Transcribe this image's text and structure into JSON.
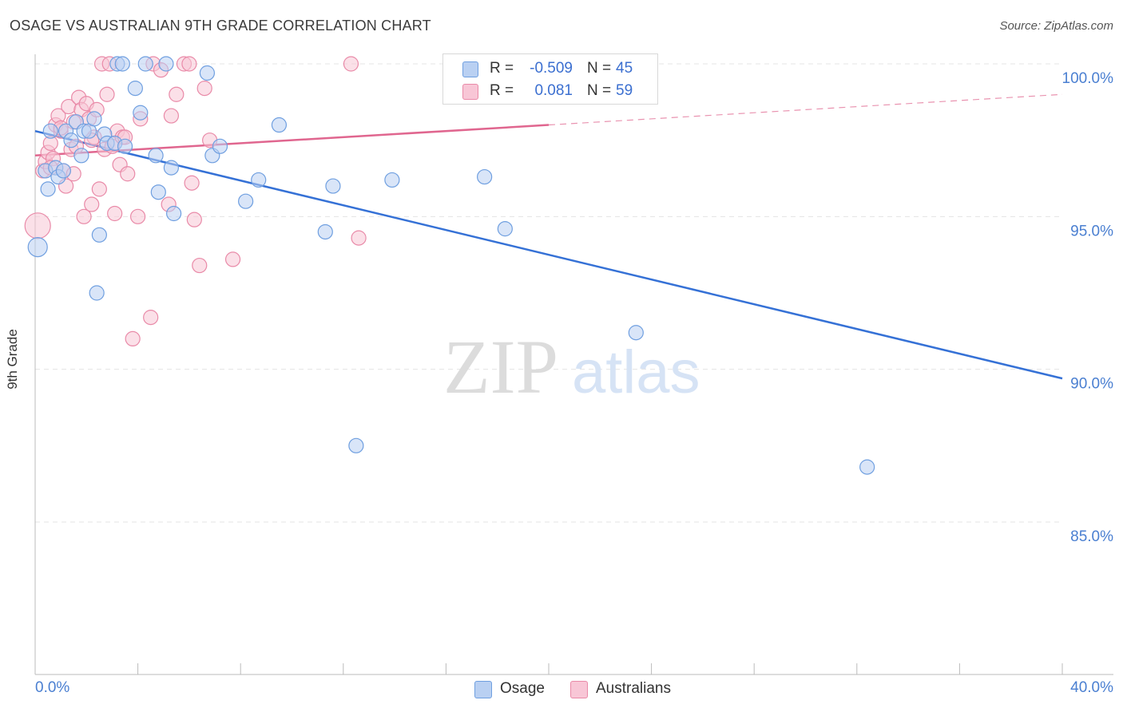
{
  "title": "OSAGE VS AUSTRALIAN 9TH GRADE CORRELATION CHART",
  "source": "Source: ZipAtlas.com",
  "watermark": {
    "zip": "ZIP",
    "atlas": "atlas"
  },
  "stats": {
    "r_label": "R =",
    "n_label": "N =",
    "rows": [
      {
        "r": "-0.509",
        "n": "45",
        "color": "#6f9fe0"
      },
      {
        "r": "0.081",
        "n": "59",
        "color": "#e98aa8"
      }
    ]
  },
  "legend": [
    "Osage",
    "Australians"
  ],
  "chart_data": {
    "type": "scatter",
    "title": "OSAGE VS AUSTRALIAN 9TH GRADE CORRELATION CHART",
    "xlabel": "",
    "ylabel": "9th Grade",
    "xlim": [
      0.0,
      40.0
    ],
    "ylim": [
      80.0,
      100.5
    ],
    "x_tick_labels": [
      "0.0%",
      "40.0%"
    ],
    "y_ticks": [
      85.0,
      90.0,
      95.0,
      100.0
    ],
    "y_tick_labels": [
      "85.0%",
      "90.0%",
      "95.0%",
      "100.0%"
    ],
    "grid": true,
    "legend_position": "bottom-center",
    "series": [
      {
        "name": "Osage",
        "color": "#6f9fe0",
        "fill": "#b9d0f2",
        "trend": {
          "x": [
            0.0,
            40.0
          ],
          "y": [
            97.8,
            89.7
          ],
          "style": "solid",
          "color": "#3571d6"
        },
        "points": [
          [
            0.1,
            94.0,
            12
          ],
          [
            0.4,
            96.5,
            9
          ],
          [
            0.5,
            95.9,
            9
          ],
          [
            0.6,
            97.8,
            9
          ],
          [
            0.8,
            96.6,
            9
          ],
          [
            0.9,
            96.3,
            9
          ],
          [
            1.1,
            96.5,
            9
          ],
          [
            1.2,
            97.8,
            9
          ],
          [
            1.4,
            97.5,
            9
          ],
          [
            1.6,
            98.1,
            9
          ],
          [
            1.8,
            97.0,
            9
          ],
          [
            1.9,
            97.8,
            9
          ],
          [
            2.1,
            97.8,
            9
          ],
          [
            2.3,
            98.2,
            9
          ],
          [
            2.4,
            92.5,
            9
          ],
          [
            2.5,
            94.4,
            9
          ],
          [
            2.7,
            97.7,
            9
          ],
          [
            2.8,
            97.4,
            9
          ],
          [
            3.1,
            97.4,
            9
          ],
          [
            3.2,
            100.0,
            9
          ],
          [
            3.4,
            100.0,
            9
          ],
          [
            3.5,
            97.3,
            9
          ],
          [
            3.9,
            99.2,
            9
          ],
          [
            4.1,
            98.4,
            9
          ],
          [
            4.3,
            100.0,
            9
          ],
          [
            4.7,
            97.0,
            9
          ],
          [
            4.8,
            95.8,
            9
          ],
          [
            5.1,
            100.0,
            9
          ],
          [
            5.3,
            96.6,
            9
          ],
          [
            5.4,
            95.1,
            9
          ],
          [
            6.7,
            99.7,
            9
          ],
          [
            6.9,
            97.0,
            9
          ],
          [
            7.2,
            97.3,
            9
          ],
          [
            8.2,
            95.5,
            9
          ],
          [
            8.7,
            96.2,
            9
          ],
          [
            9.5,
            98.0,
            9
          ],
          [
            11.3,
            94.5,
            9
          ],
          [
            11.6,
            96.0,
            9
          ],
          [
            12.5,
            87.5,
            9
          ],
          [
            13.9,
            96.2,
            9
          ],
          [
            17.5,
            96.3,
            9
          ],
          [
            18.3,
            94.6,
            9
          ],
          [
            23.4,
            91.2,
            9
          ],
          [
            32.4,
            86.8,
            9
          ],
          [
            19.9,
            100.0,
            9
          ]
        ]
      },
      {
        "name": "Australians",
        "color": "#e98aa8",
        "fill": "#f8c6d6",
        "trend": {
          "x": [
            0.0,
            20.0,
            40.0
          ],
          "y": [
            97.0,
            98.0,
            99.0
          ],
          "style": "solid-then-dashed",
          "color": "#e0668f"
        },
        "points": [
          [
            0.1,
            94.7,
            16
          ],
          [
            0.3,
            96.5,
            9
          ],
          [
            0.4,
            96.8,
            9
          ],
          [
            0.5,
            97.1,
            9
          ],
          [
            0.6,
            97.4,
            9
          ],
          [
            0.7,
            96.9,
            9
          ],
          [
            0.8,
            98.0,
            9
          ],
          [
            0.9,
            98.3,
            9
          ],
          [
            1.0,
            97.8,
            9
          ],
          [
            1.1,
            96.5,
            9
          ],
          [
            1.2,
            96.0,
            9
          ],
          [
            1.3,
            98.6,
            9
          ],
          [
            1.4,
            97.2,
            9
          ],
          [
            1.5,
            96.4,
            9
          ],
          [
            1.6,
            97.3,
            9
          ],
          [
            1.7,
            98.9,
            9
          ],
          [
            1.8,
            98.5,
            9
          ],
          [
            1.9,
            95.0,
            9
          ],
          [
            2.0,
            98.7,
            9
          ],
          [
            2.1,
            98.2,
            9
          ],
          [
            2.2,
            95.4,
            9
          ],
          [
            2.3,
            97.6,
            9
          ],
          [
            2.4,
            98.5,
            9
          ],
          [
            2.5,
            95.9,
            9
          ],
          [
            2.6,
            100.0,
            9
          ],
          [
            2.7,
            97.2,
            9
          ],
          [
            2.8,
            99.0,
            9
          ],
          [
            2.9,
            100.0,
            9
          ],
          [
            3.0,
            97.3,
            9
          ],
          [
            3.1,
            95.1,
            9
          ],
          [
            3.2,
            97.8,
            9
          ],
          [
            3.3,
            96.7,
            9
          ],
          [
            3.4,
            97.6,
            9
          ],
          [
            3.5,
            97.6,
            9
          ],
          [
            3.6,
            96.4,
            9
          ],
          [
            3.8,
            91.0,
            9
          ],
          [
            4.0,
            95.0,
            9
          ],
          [
            4.1,
            98.2,
            9
          ],
          [
            4.5,
            91.7,
            9
          ],
          [
            4.6,
            100.0,
            9
          ],
          [
            4.9,
            99.8,
            9
          ],
          [
            5.2,
            95.4,
            9
          ],
          [
            5.3,
            98.3,
            9
          ],
          [
            5.5,
            99.0,
            9
          ],
          [
            5.8,
            100.0,
            9
          ],
          [
            6.0,
            100.0,
            9
          ],
          [
            6.1,
            96.1,
            9
          ],
          [
            6.2,
            94.9,
            9
          ],
          [
            6.4,
            93.4,
            9
          ],
          [
            6.6,
            99.2,
            9
          ],
          [
            6.8,
            97.5,
            9
          ],
          [
            7.7,
            93.6,
            9
          ],
          [
            12.3,
            100.0,
            9
          ],
          [
            12.6,
            94.3,
            9
          ],
          [
            19.9,
            100.0,
            9
          ],
          [
            1.0,
            97.9,
            9
          ],
          [
            2.2,
            97.5,
            9
          ],
          [
            0.6,
            96.6,
            9
          ],
          [
            1.5,
            98.1,
            9
          ]
        ]
      }
    ]
  }
}
